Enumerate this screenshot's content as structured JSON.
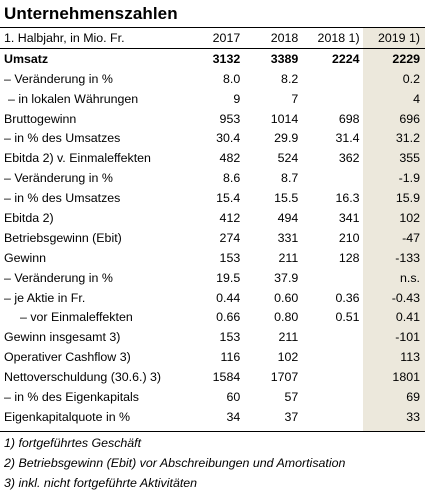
{
  "title": "Unternehmenszahlen",
  "header": {
    "label": "1. Halbjahr, in Mio. Fr.",
    "cols": [
      "2017",
      "2018",
      "2018 1)",
      "2019 1)"
    ]
  },
  "rows": [
    {
      "label": "Umsatz",
      "v": [
        "3132",
        "3389",
        "2224",
        "2229"
      ]
    },
    {
      "label": "– Veränderung in %",
      "v": [
        "8.0",
        "8.2",
        "",
        "0.2"
      ]
    },
    {
      "label": "– in lokalen Währungen",
      "v": [
        "9",
        "7",
        "",
        "4"
      ]
    },
    {
      "label": "Bruttogewinn",
      "v": [
        "953",
        "1014",
        "698",
        "696"
      ]
    },
    {
      "label": "– in % des Umsatzes",
      "v": [
        "30.4",
        "29.9",
        "31.4",
        "31.2"
      ]
    },
    {
      "label": "Ebitda 2) v. Einmaleffekten",
      "v": [
        "482",
        "524",
        "362",
        "355"
      ]
    },
    {
      "label": "– Veränderung in %",
      "v": [
        "8.6",
        "8.7",
        "",
        "-1.9"
      ]
    },
    {
      "label": "– in % des Umsatzes",
      "v": [
        "15.4",
        "15.5",
        "16.3",
        "15.9"
      ]
    },
    {
      "label": "Ebitda 2)",
      "v": [
        "412",
        "494",
        "341",
        "102"
      ]
    },
    {
      "label": "Betriebsgewinn (Ebit)",
      "v": [
        "274",
        "331",
        "210",
        "-47"
      ]
    },
    {
      "label": "Gewinn",
      "v": [
        "153",
        "211",
        "128",
        "-133"
      ]
    },
    {
      "label": "– Veränderung in %",
      "v": [
        "19.5",
        "37.9",
        "",
        "n.s."
      ]
    },
    {
      "label": "– je Aktie in Fr.",
      "v": [
        "0.44",
        "0.60",
        "0.36",
        "-0.43"
      ]
    },
    {
      "label": "– vor Einmaleffekten",
      "v": [
        "0.66",
        "0.80",
        "0.51",
        "0.41"
      ]
    },
    {
      "label": "Gewinn insgesamt 3)",
      "v": [
        "153",
        "211",
        "",
        "-101"
      ]
    },
    {
      "label": "Operativer Cashflow 3)",
      "v": [
        "116",
        "102",
        "",
        "113"
      ]
    },
    {
      "label": "Nettoverschuldung (30.6.) 3)",
      "v": [
        "1584",
        "1707",
        "",
        "1801"
      ]
    },
    {
      "label": "– in % des Eigenkapitals",
      "v": [
        "60",
        "57",
        "",
        "69"
      ]
    },
    {
      "label": "Eigenkapitalquote in %",
      "v": [
        "34",
        "37",
        "",
        "33"
      ]
    }
  ],
  "footnotes": [
    "1) fortgeführtes Geschäft",
    "2) Betriebsgewinn (Ebit) vor Abschreibungen und Amortisation",
    "3) inkl. nicht fortgeführte Aktivitäten"
  ]
}
